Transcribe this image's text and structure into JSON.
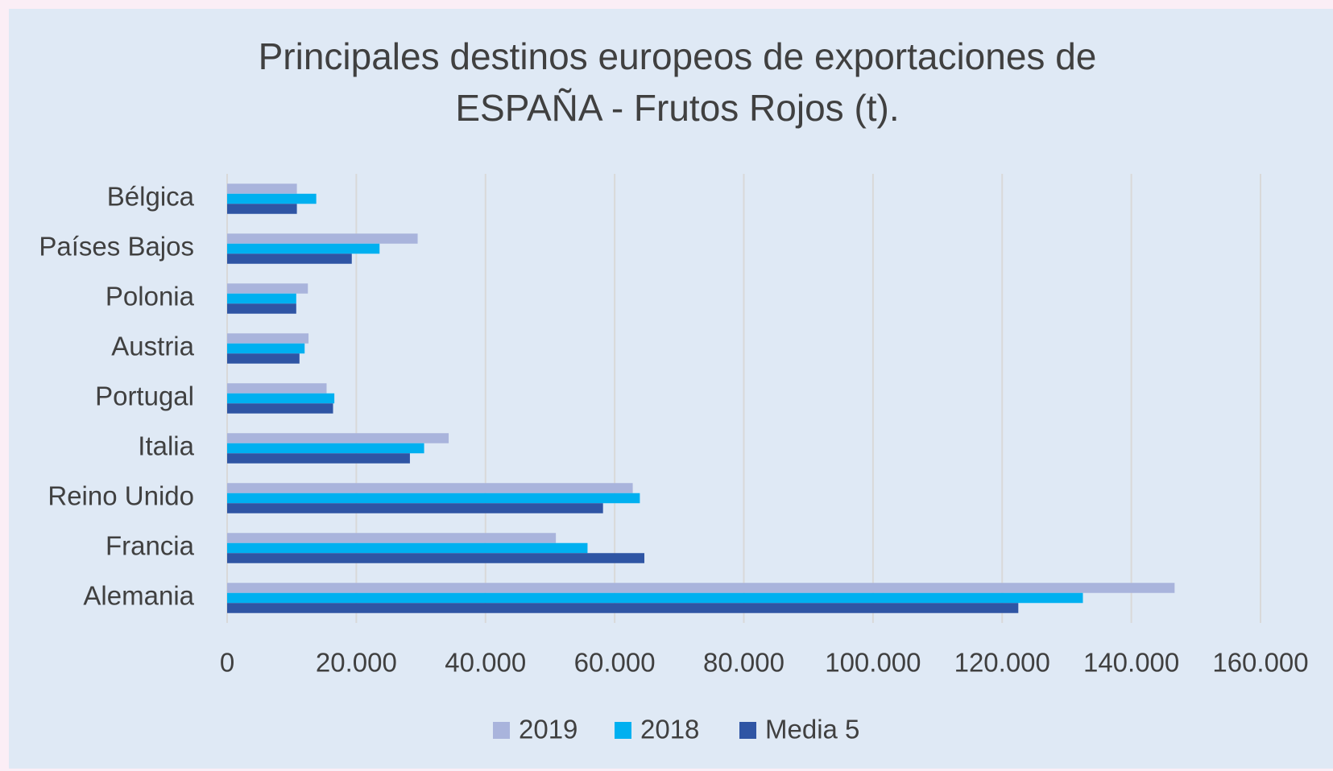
{
  "chart_data": {
    "type": "hbar",
    "title": [
      "Principales destinos europeos de exportaciones de",
      "ESPAÑA - Frutos Rojos (t)."
    ],
    "categories": [
      "Bélgica",
      "Países Bajos",
      "Polonia",
      "Austria",
      "Portugal",
      "Italia",
      "Reino Unido",
      "Francia",
      "Alemania"
    ],
    "series": [
      {
        "name": "2019",
        "color": "#a9b4dc",
        "values": [
          10800,
          29500,
          12500,
          12600,
          15400,
          34300,
          62800,
          50900,
          146700
        ]
      },
      {
        "name": "2018",
        "color": "#00b0f0",
        "values": [
          13800,
          23600,
          10700,
          12000,
          16600,
          30500,
          63900,
          55800,
          132500
        ]
      },
      {
        "name": "Media 5",
        "color": "#2f55a4",
        "values": [
          10800,
          19300,
          10700,
          11200,
          16400,
          28300,
          58200,
          64600,
          122500
        ]
      }
    ],
    "xlim": [
      0,
      160000
    ],
    "xticks": [
      0,
      {
        "value": 20000,
        "label": "20.000"
      },
      {
        "value": 40000,
        "label": "40.000"
      },
      {
        "value": 60000,
        "label": "60.000"
      },
      {
        "value": 80000,
        "label": "80.000"
      },
      {
        "value": 100000,
        "label": "100.000"
      },
      {
        "value": 120000,
        "label": "120.000"
      },
      {
        "value": 140000,
        "label": "140.000"
      },
      {
        "value": 160000,
        "label": "160.000"
      }
    ],
    "grid": true,
    "legend": "bottom"
  }
}
